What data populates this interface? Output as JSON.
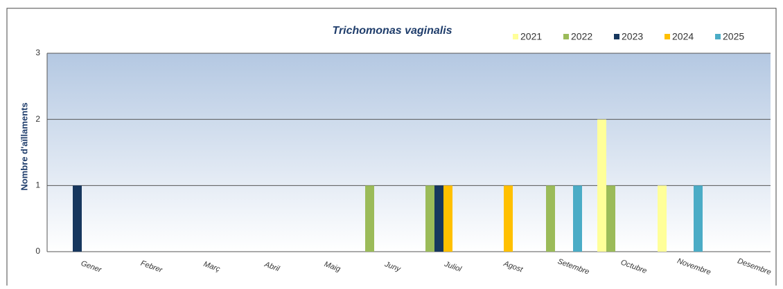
{
  "chart_data": {
    "type": "bar",
    "title": "Trichomonas vaginalis",
    "y_label": "Nombre d'aïllaments",
    "categories": [
      "Gener",
      "Febrer",
      "Març",
      "Abril",
      "Maig",
      "Juny",
      "Juliol",
      "Agost",
      "Setembre",
      "Octubre",
      "Novembre",
      "Desembre"
    ],
    "series": [
      {
        "name": "2021",
        "color": "#ffff99",
        "values": [
          0,
          0,
          0,
          0,
          0,
          0,
          0,
          0,
          0,
          2,
          1,
          0
        ]
      },
      {
        "name": "2022",
        "color": "#9bbb59",
        "values": [
          0,
          0,
          0,
          0,
          0,
          1,
          1,
          0,
          1,
          1,
          0,
          0
        ]
      },
      {
        "name": "2023",
        "color": "#17375e",
        "values": [
          1,
          0,
          0,
          0,
          0,
          0,
          1,
          0,
          0,
          0,
          0,
          0
        ]
      },
      {
        "name": "2024",
        "color": "#ffc000",
        "values": [
          0,
          0,
          0,
          0,
          0,
          0,
          1,
          1,
          0,
          0,
          0,
          0
        ]
      },
      {
        "name": "2025",
        "color": "#4bacc6",
        "values": [
          0,
          0,
          0,
          0,
          0,
          0,
          0,
          0,
          1,
          0,
          1,
          0
        ]
      }
    ],
    "ylim": [
      0,
      3
    ],
    "yticks": [
      0,
      1,
      2,
      3
    ],
    "grid": true,
    "legend": "top-right"
  }
}
